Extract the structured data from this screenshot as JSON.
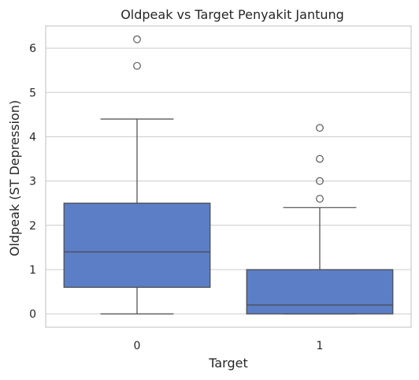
{
  "chart_data": {
    "type": "box",
    "title": "Oldpeak vs Target Penyakit Jantung",
    "xlabel": "Target",
    "ylabel": "Oldpeak (ST Depression)",
    "categories": [
      "0",
      "1"
    ],
    "ylim": [
      -0.3,
      6.5
    ],
    "yticks": [
      "0",
      "1",
      "2",
      "3",
      "4",
      "5",
      "6"
    ],
    "grid": "horizontal",
    "box_color": "#5b7ec6",
    "boxes": [
      {
        "category": "0",
        "whisker_low": 0.0,
        "q1": 0.6,
        "median": 1.4,
        "q3": 2.5,
        "whisker_high": 4.4,
        "fliers": [
          5.6,
          6.2
        ]
      },
      {
        "category": "1",
        "whisker_low": 0.0,
        "q1": 0.0,
        "median": 0.2,
        "q3": 1.0,
        "whisker_high": 2.4,
        "fliers": [
          2.6,
          3.0,
          3.5,
          4.2
        ]
      }
    ]
  }
}
